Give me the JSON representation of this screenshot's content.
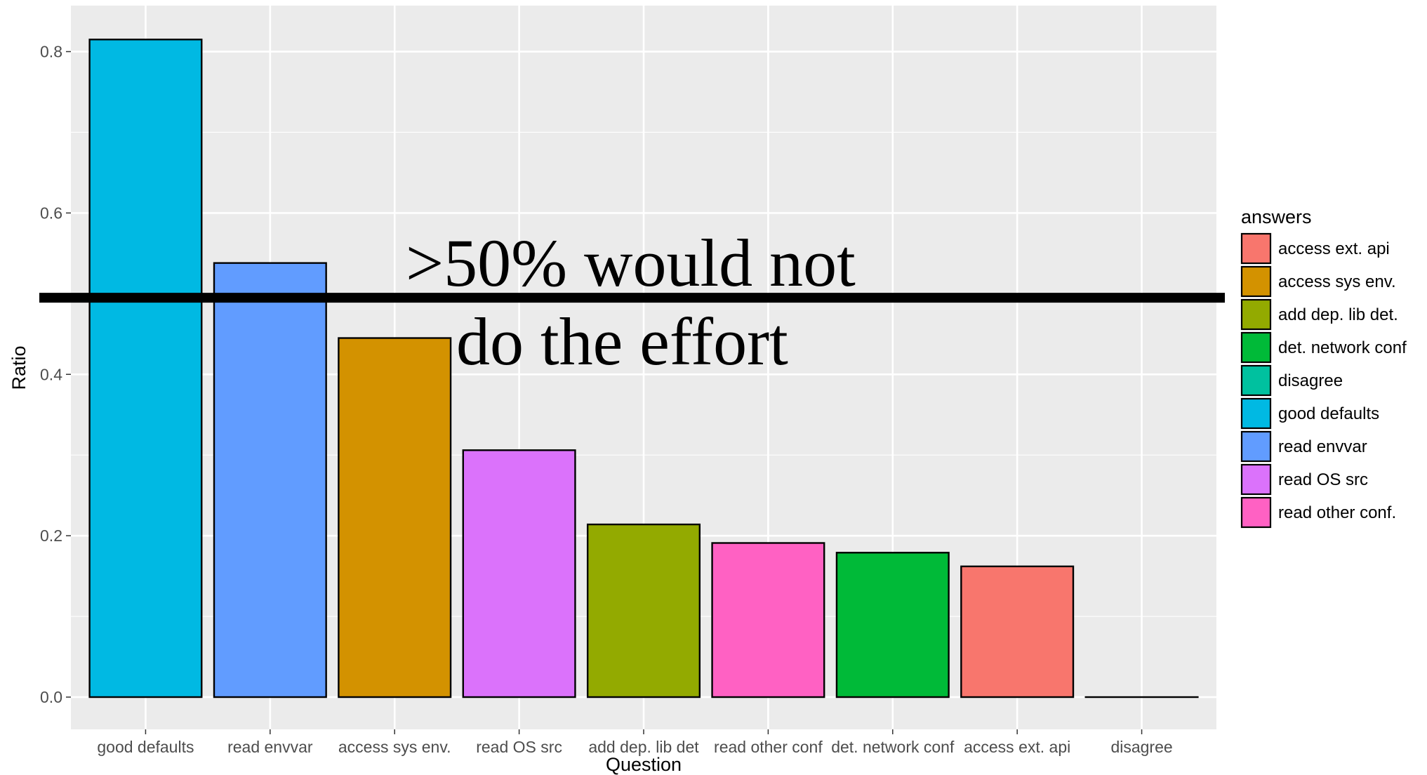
{
  "chart_data": {
    "type": "bar",
    "categories": [
      "good defaults",
      "read envvar",
      "access sys env.",
      "read OS src",
      "add dep. lib det.",
      "read other conf.",
      "det. network conf",
      "access ext. api",
      "disagree"
    ],
    "tick_labels": [
      "good defaults",
      "read envvar",
      "access sys env.",
      "read OS src",
      "add dep. lib det",
      "read other conf",
      "det. network conf",
      "access ext. api",
      "disagree"
    ],
    "values": [
      0.815,
      0.538,
      0.445,
      0.306,
      0.214,
      0.191,
      0.179,
      0.162,
      0.0
    ],
    "xlabel": "Question",
    "ylabel": "Ratio",
    "ylim": [
      -0.04,
      0.857
    ],
    "yticks": [
      0.0,
      0.2,
      0.4,
      0.6,
      0.8
    ],
    "ytick_labels": [
      "0.0",
      "0.2",
      "0.4",
      "0.6",
      "0.8"
    ],
    "grid": true,
    "legend": {
      "title": "answers",
      "position": "right",
      "entries": [
        {
          "label": "access ext. api",
          "color": "#F8766D"
        },
        {
          "label": "access sys env.",
          "color": "#D39200"
        },
        {
          "label": "add dep. lib det.",
          "color": "#93AA00"
        },
        {
          "label": "det. network conf",
          "color": "#00BA38"
        },
        {
          "label": "disagree",
          "color": "#00C19F"
        },
        {
          "label": "good defaults",
          "color": "#00B9E3"
        },
        {
          "label": "read envvar",
          "color": "#619CFF"
        },
        {
          "label": "read OS src",
          "color": "#DB72FB"
        },
        {
          "label": "read other conf.",
          "color": "#FF61C3"
        }
      ]
    },
    "reference_line": {
      "y": 0.495,
      "color": "#000000"
    },
    "annotation": {
      "lines": [
        ">50% would not",
        "do the effort"
      ]
    },
    "colors": {
      "panel_background": "#EBEBEB",
      "grid": "#FFFFFF",
      "bar_outline": "#000000"
    }
  }
}
